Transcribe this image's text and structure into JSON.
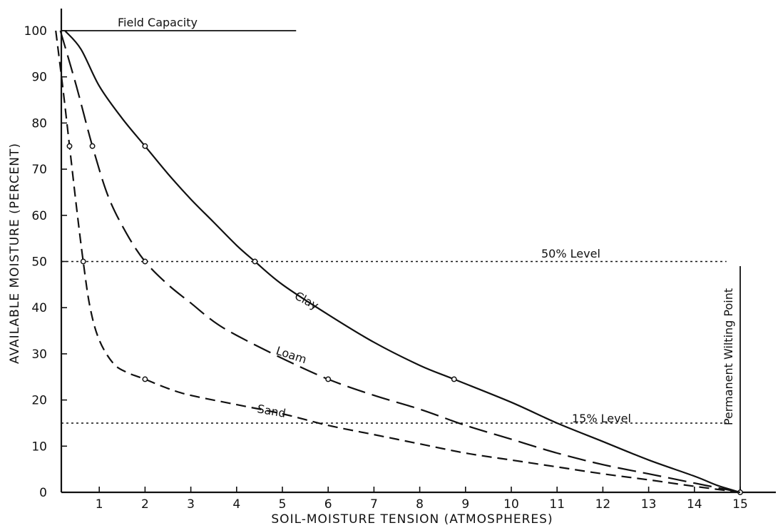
{
  "chart_data": {
    "type": "line",
    "xlabel": "SOIL-MOISTURE TENSION (ATMOSPHERES)",
    "ylabel": "AVAILABLE MOISTURE (PERCENT)",
    "xlim": [
      0,
      15
    ],
    "ylim": [
      0,
      100
    ],
    "x_ticks": [
      1,
      2,
      3,
      4,
      5,
      6,
      7,
      8,
      9,
      10,
      11,
      12,
      13,
      14,
      15
    ],
    "y_ticks": [
      0,
      10,
      20,
      30,
      40,
      50,
      60,
      70,
      80,
      90,
      100
    ],
    "grid": false,
    "series": [
      {
        "name": "Clay",
        "style": "solid",
        "points": [
          [
            0.25,
            100
          ],
          [
            0.6,
            96
          ],
          [
            1.0,
            88
          ],
          [
            1.5,
            81
          ],
          [
            2.0,
            75
          ],
          [
            2.5,
            69
          ],
          [
            3.0,
            63.5
          ],
          [
            3.5,
            58.5
          ],
          [
            4.0,
            53.5
          ],
          [
            4.4,
            50
          ],
          [
            5.0,
            45
          ],
          [
            6.0,
            38.5
          ],
          [
            7.0,
            32.5
          ],
          [
            8.0,
            27.5
          ],
          [
            8.75,
            24.5
          ],
          [
            10.0,
            19.5
          ],
          [
            11.0,
            15
          ],
          [
            12.0,
            11
          ],
          [
            13.0,
            7
          ],
          [
            14.0,
            3.5
          ],
          [
            14.5,
            1.5
          ],
          [
            15.0,
            0
          ]
        ],
        "markers": [
          [
            2.0,
            75
          ],
          [
            4.4,
            50
          ],
          [
            8.75,
            24.5
          ],
          [
            15.0,
            0
          ]
        ]
      },
      {
        "name": "Loam",
        "style": "long-dash",
        "points": [
          [
            0.15,
            100
          ],
          [
            0.5,
            88
          ],
          [
            0.85,
            75
          ],
          [
            1.2,
            64
          ],
          [
            1.6,
            56
          ],
          [
            2.0,
            50
          ],
          [
            2.5,
            45
          ],
          [
            3.0,
            41
          ],
          [
            3.5,
            37
          ],
          [
            4.0,
            34
          ],
          [
            5.0,
            29
          ],
          [
            6.0,
            24.5
          ],
          [
            7.0,
            21
          ],
          [
            8.0,
            18
          ],
          [
            9.0,
            14.5
          ],
          [
            10.0,
            11.5
          ],
          [
            11.0,
            8.5
          ],
          [
            12.0,
            6
          ],
          [
            13.0,
            4
          ],
          [
            14.0,
            2
          ],
          [
            15.0,
            0
          ]
        ],
        "markers": [
          [
            0.85,
            75
          ],
          [
            2.0,
            50
          ],
          [
            6.0,
            24.5
          ]
        ]
      },
      {
        "name": "Sand",
        "style": "dash",
        "points": [
          [
            0.05,
            100
          ],
          [
            0.2,
            88
          ],
          [
            0.35,
            75
          ],
          [
            0.5,
            62
          ],
          [
            0.65,
            50
          ],
          [
            0.8,
            40
          ],
          [
            1.0,
            33
          ],
          [
            1.3,
            28
          ],
          [
            1.6,
            26
          ],
          [
            2.0,
            24.5
          ],
          [
            2.5,
            22.5
          ],
          [
            3.0,
            21
          ],
          [
            4.0,
            19
          ],
          [
            5.0,
            17
          ],
          [
            6.0,
            14.5
          ],
          [
            7.0,
            12.5
          ],
          [
            8.0,
            10.5
          ],
          [
            9.0,
            8.5
          ],
          [
            10.0,
            7
          ],
          [
            11.0,
            5.5
          ],
          [
            12.0,
            4
          ],
          [
            13.0,
            2.7
          ],
          [
            14.0,
            1.3
          ],
          [
            15.0,
            0
          ]
        ],
        "markers": [
          [
            0.35,
            75
          ],
          [
            0.65,
            50
          ],
          [
            2.0,
            24.5
          ]
        ]
      }
    ],
    "reference_lines": {
      "field_capacity": {
        "label": "Field Capacity",
        "y": 100,
        "x_end": 5.3
      },
      "level_50": {
        "label": "50% Level",
        "y": 50,
        "x_end": 14.7
      },
      "level_15": {
        "label": "15% Level",
        "y": 15,
        "x_end": 14.7
      },
      "wilting_point": {
        "label": "Permanent Wilting Point",
        "x": 15,
        "y_top": 49
      }
    }
  }
}
